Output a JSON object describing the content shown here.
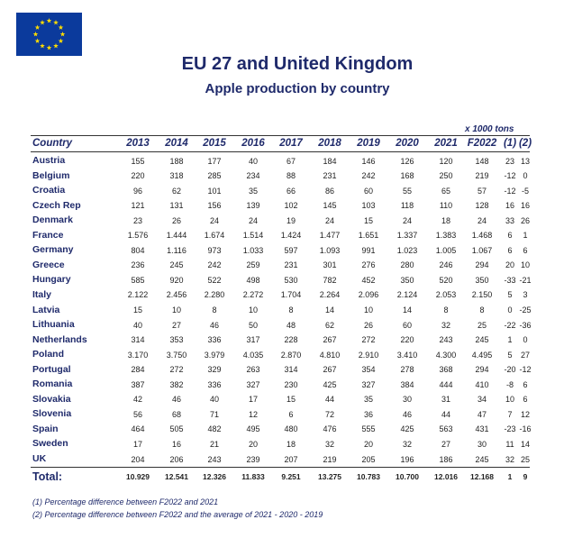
{
  "header": {
    "title": "EU 27 and United Kingdom",
    "subtitle": "Apple production by country"
  },
  "table": {
    "unit": "x 1000 tons",
    "columns": [
      "Country",
      "2013",
      "2014",
      "2015",
      "2016",
      "2017",
      "2018",
      "2019",
      "2020",
      "2021",
      "F2022",
      "(1)",
      "(2)"
    ],
    "rows": [
      [
        "Austria",
        "155",
        "188",
        "177",
        "40",
        "67",
        "184",
        "146",
        "126",
        "120",
        "148",
        "23",
        "13"
      ],
      [
        "Belgium",
        "220",
        "318",
        "285",
        "234",
        "88",
        "231",
        "242",
        "168",
        "250",
        "219",
        "-12",
        "0"
      ],
      [
        "Croatia",
        "96",
        "62",
        "101",
        "35",
        "66",
        "86",
        "60",
        "55",
        "65",
        "57",
        "-12",
        "-5"
      ],
      [
        "Czech Rep",
        "121",
        "131",
        "156",
        "139",
        "102",
        "145",
        "103",
        "118",
        "110",
        "128",
        "16",
        "16"
      ],
      [
        "Denmark",
        "23",
        "26",
        "24",
        "24",
        "19",
        "24",
        "15",
        "24",
        "18",
        "24",
        "33",
        "26"
      ],
      [
        "France",
        "1.576",
        "1.444",
        "1.674",
        "1.514",
        "1.424",
        "1.477",
        "1.651",
        "1.337",
        "1.383",
        "1.468",
        "6",
        "1"
      ],
      [
        "Germany",
        "804",
        "1.116",
        "973",
        "1.033",
        "597",
        "1.093",
        "991",
        "1.023",
        "1.005",
        "1.067",
        "6",
        "6"
      ],
      [
        "Greece",
        "236",
        "245",
        "242",
        "259",
        "231",
        "301",
        "276",
        "280",
        "246",
        "294",
        "20",
        "10"
      ],
      [
        "Hungary",
        "585",
        "920",
        "522",
        "498",
        "530",
        "782",
        "452",
        "350",
        "520",
        "350",
        "-33",
        "-21"
      ],
      [
        "Italy",
        "2.122",
        "2.456",
        "2.280",
        "2.272",
        "1.704",
        "2.264",
        "2.096",
        "2.124",
        "2.053",
        "2.150",
        "5",
        "3"
      ],
      [
        "Latvia",
        "15",
        "10",
        "8",
        "10",
        "8",
        "14",
        "10",
        "14",
        "8",
        "8",
        "0",
        "-25"
      ],
      [
        "Lithuania",
        "40",
        "27",
        "46",
        "50",
        "48",
        "62",
        "26",
        "60",
        "32",
        "25",
        "-22",
        "-36"
      ],
      [
        "Netherlands",
        "314",
        "353",
        "336",
        "317",
        "228",
        "267",
        "272",
        "220",
        "243",
        "245",
        "1",
        "0"
      ],
      [
        "Poland",
        "3.170",
        "3.750",
        "3.979",
        "4.035",
        "2.870",
        "4.810",
        "2.910",
        "3.410",
        "4.300",
        "4.495",
        "5",
        "27"
      ],
      [
        "Portugal",
        "284",
        "272",
        "329",
        "263",
        "314",
        "267",
        "354",
        "278",
        "368",
        "294",
        "-20",
        "-12"
      ],
      [
        "Romania",
        "387",
        "382",
        "336",
        "327",
        "230",
        "425",
        "327",
        "384",
        "444",
        "410",
        "-8",
        "6"
      ],
      [
        "Slovakia",
        "42",
        "46",
        "40",
        "17",
        "15",
        "44",
        "35",
        "30",
        "31",
        "34",
        "10",
        "6"
      ],
      [
        "Slovenia",
        "56",
        "68",
        "71",
        "12",
        "6",
        "72",
        "36",
        "46",
        "44",
        "47",
        "7",
        "12"
      ],
      [
        "Spain",
        "464",
        "505",
        "482",
        "495",
        "480",
        "476",
        "555",
        "425",
        "563",
        "431",
        "-23",
        "-16"
      ],
      [
        "Sweden",
        "17",
        "16",
        "21",
        "20",
        "18",
        "32",
        "20",
        "32",
        "27",
        "30",
        "11",
        "14"
      ],
      [
        "UK",
        "204",
        "206",
        "243",
        "239",
        "207",
        "219",
        "205",
        "196",
        "186",
        "245",
        "32",
        "25"
      ]
    ],
    "total": [
      "Total:",
      "10.929",
      "12.541",
      "12.326",
      "11.833",
      "9.251",
      "13.275",
      "10.783",
      "10.700",
      "12.016",
      "12.168",
      "1",
      "9"
    ]
  },
  "footnotes": [
    "(1) Percentage difference between F2022 and 2021",
    "(2) Percentage difference between F2022 and the average of 2021 - 2020 - 2019"
  ]
}
